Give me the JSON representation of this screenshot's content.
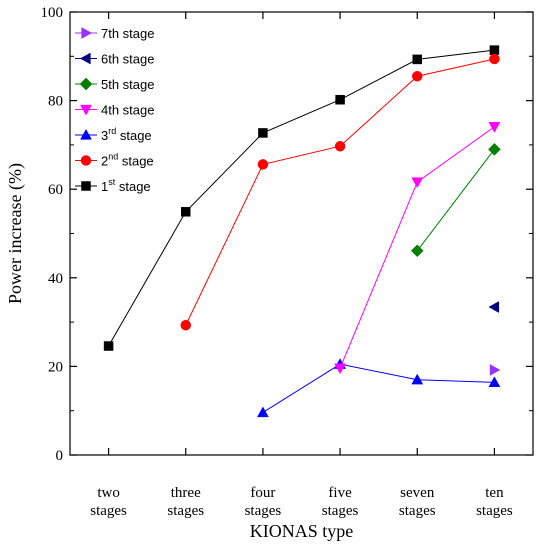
{
  "chart_data": {
    "type": "line",
    "xlabel": "KIONAS type",
    "ylabel": "Power increase (%)",
    "ylim": [
      0,
      100
    ],
    "yticks": [
      0,
      20,
      40,
      60,
      80,
      100
    ],
    "categories": [
      [
        "two",
        "stages"
      ],
      [
        "three",
        "stages"
      ],
      [
        "four",
        "stages"
      ],
      [
        "five",
        "stages"
      ],
      [
        "seven",
        "stages"
      ],
      [
        "ten",
        "stages"
      ]
    ],
    "legend_position": "top-left",
    "series": [
      {
        "name": "7th stage",
        "label_base": "7th stage",
        "label_sup": "",
        "label_rest": "",
        "color": "#9933ff",
        "marker": "triangle-right",
        "values": [
          null,
          null,
          null,
          null,
          null,
          19.2
        ]
      },
      {
        "name": "6th stage",
        "label_base": "6th stage",
        "label_sup": "",
        "label_rest": "",
        "color": "#000080",
        "marker": "triangle-left",
        "values": [
          null,
          null,
          null,
          null,
          null,
          33.4
        ]
      },
      {
        "name": "5th stage",
        "label_base": "5th stage",
        "label_sup": "",
        "label_rest": "",
        "color": "#008000",
        "marker": "diamond",
        "values": [
          null,
          null,
          null,
          null,
          46.1,
          69.0
        ]
      },
      {
        "name": "4th stage",
        "label_base": "4th stage",
        "label_sup": "",
        "label_rest": "",
        "color": "#ff00ff",
        "marker": "triangle-down",
        "values": [
          null,
          null,
          null,
          19.6,
          61.6,
          74.1
        ]
      },
      {
        "name": "3rd stage",
        "label_base": "3",
        "label_sup": "rd",
        "label_rest": " stage",
        "color": "#0000ff",
        "marker": "triangle-up",
        "values": [
          null,
          null,
          9.6,
          20.5,
          17.0,
          16.4
        ]
      },
      {
        "name": "2nd stage",
        "label_base": "2",
        "label_sup": "nd",
        "label_rest": " stage",
        "color": "#ff0000",
        "marker": "circle",
        "values": [
          null,
          29.3,
          65.6,
          69.7,
          85.5,
          89.4
        ]
      },
      {
        "name": "1st stage",
        "label_base": "1",
        "label_sup": "st",
        "label_rest": " stage",
        "color": "#000000",
        "marker": "square",
        "values": [
          24.6,
          54.9,
          72.7,
          80.2,
          89.3,
          91.4
        ]
      }
    ]
  }
}
